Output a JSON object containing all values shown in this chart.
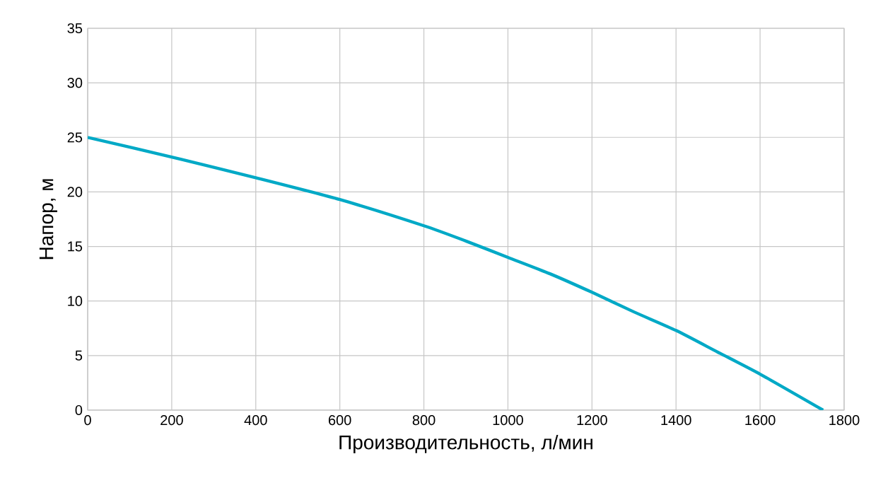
{
  "chart_data": {
    "type": "line",
    "xlabel": "Производительность, л/мин",
    "ylabel": "Напор, м",
    "x": [
      0,
      200,
      400,
      600,
      800,
      900,
      1000,
      1100,
      1200,
      1300,
      1400,
      1500,
      1600,
      1750
    ],
    "series": [
      {
        "color": "#00a9c6",
        "values": [
          25,
          23.2,
          21.3,
          19.3,
          16.9,
          15.5,
          14.0,
          12.5,
          10.8,
          9.0,
          7.3,
          5.3,
          3.3,
          0
        ]
      }
    ],
    "xlim": [
      0,
      1800
    ],
    "ylim": [
      0,
      35
    ],
    "xticks": [
      0,
      200,
      400,
      600,
      800,
      1000,
      1200,
      1400,
      1600,
      1800
    ],
    "yticks": [
      0,
      5,
      10,
      15,
      20,
      25,
      30,
      35
    ],
    "grid": true,
    "marker": "none",
    "line_style": "solid"
  }
}
